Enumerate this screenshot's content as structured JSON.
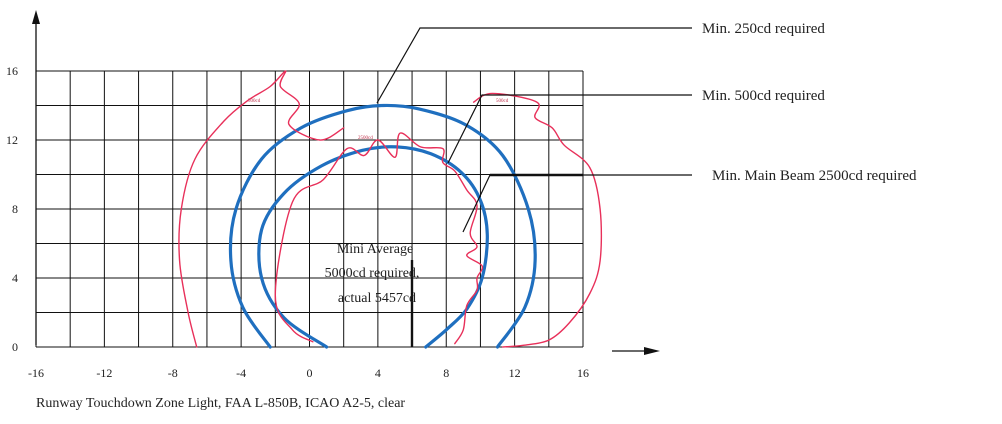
{
  "chart_data": {
    "type": "line",
    "title": "",
    "caption": "Runway Touchdown Zone Light, FAA L-850B, ICAO A2-5, clear",
    "xlabel": "",
    "ylabel": "",
    "xlim": [
      -16,
      16
    ],
    "ylim": [
      0,
      16
    ],
    "x_ticks": [
      -16,
      -12,
      -8,
      -4,
      0,
      4,
      8,
      12,
      16
    ],
    "y_ticks": [
      0,
      4,
      8,
      12,
      16
    ],
    "grid": true,
    "series": [
      {
        "color": "#1f6fbf",
        "x": [
          -2.3,
          -3.9,
          -4.6,
          -4.3,
          -2.8,
          -0.5,
          2.2,
          4.3,
          6.4,
          9.1,
          11.3,
          12.8,
          13.2,
          12.6,
          11.0
        ],
        "y": [
          0,
          2.3,
          5,
          8,
          10.9,
          12.7,
          13.7,
          14.0,
          13.8,
          12.9,
          11.1,
          8,
          5,
          2.3,
          0
        ]
      },
      {
        "color": "#1f6fbf",
        "x": [
          1.0,
          -1.5,
          -2.8,
          -2.8,
          -1.5,
          0.7,
          3.1,
          5.1,
          7.1,
          8.9,
          10.0,
          10.4,
          10.1,
          9.2,
          8.0,
          6.8
        ],
        "y": [
          0,
          1.7,
          4,
          6.8,
          8.9,
          10.5,
          11.4,
          11.6,
          11.2,
          10.1,
          8.5,
          6.5,
          4,
          2.2,
          1.0,
          0
        ]
      },
      {
        "color": "#e8305a",
        "x": [
          -6.6,
          -7.1,
          -7.6,
          -7.5,
          -6.7,
          -5.0,
          -3.6,
          -2.3,
          -1.4,
          -1.7,
          -0.6,
          -1.2,
          0.6,
          2.0
        ],
        "y": [
          0,
          2,
          5,
          8,
          10.9,
          13.1,
          14.3,
          15.1,
          16,
          15.1,
          14.1,
          12.9,
          12.0,
          12.7
        ]
      },
      {
        "color": "#e8305a",
        "x": [
          9.6,
          10.7,
          13.3,
          13.2,
          14.2,
          14.9,
          16.4,
          17.0,
          17.0,
          16.4,
          15.2,
          14.0,
          12.5,
          11.3
        ],
        "y": [
          14.2,
          14.7,
          14.2,
          13.3,
          12.7,
          11.7,
          10.4,
          8,
          5,
          3.1,
          1.4,
          0.4,
          0.1,
          0
        ]
      },
      {
        "color": "#e8305a",
        "x": [
          0.2,
          -1.0,
          -2.0,
          -1.0,
          0.8,
          2.2,
          3.2,
          4.0,
          5.0,
          5.3,
          6.5,
          7.8,
          7.8,
          8.5,
          9.2,
          9.8,
          9.4,
          9.8,
          9.2,
          10.1,
          9.8,
          9.8,
          9.2,
          9.0,
          8.5
        ],
        "y": [
          0.3,
          1,
          3,
          8.4,
          9.7,
          11.5,
          11.1,
          12.0,
          11.0,
          12.4,
          11.6,
          11.5,
          10.7,
          10.2,
          9.1,
          8.2,
          6.6,
          5.8,
          5.3,
          4.7,
          4.0,
          3.3,
          2.4,
          1.0,
          0.2
        ]
      }
    ],
    "annotations": [
      {
        "text": "Min. 250cd required"
      },
      {
        "text": "Min. 500cd required"
      },
      {
        "text": "Min. Main Beam 2500cd required"
      },
      {
        "text_lines": [
          "Mini Average",
          "5000cd required,",
          "actual 5457cd"
        ]
      }
    ],
    "small_labels": [
      "500cd",
      "500cd",
      "2500cd"
    ]
  }
}
